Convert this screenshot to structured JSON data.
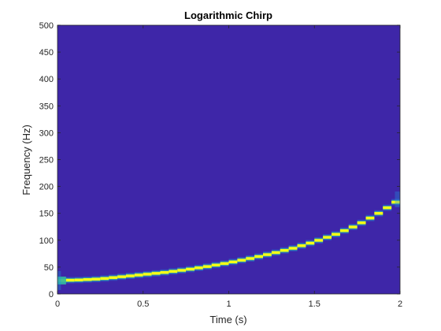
{
  "chart_data": {
    "type": "heatmap",
    "title": "Logarithmic Chirp",
    "xlabel": "Time (s)",
    "ylabel": "Frequency (Hz)",
    "xlim": [
      0,
      2
    ],
    "ylim": [
      0,
      500
    ],
    "x_ticks": [
      0,
      0.5,
      1,
      1.5,
      2
    ],
    "x_tick_labels": [
      "0",
      "0.5",
      "1",
      "1.5",
      "2"
    ],
    "y_ticks": [
      0,
      50,
      100,
      150,
      200,
      250,
      300,
      350,
      400,
      450,
      500
    ],
    "y_tick_labels": [
      "0",
      "50",
      "100",
      "150",
      "200",
      "250",
      "300",
      "350",
      "400",
      "450",
      "500"
    ],
    "grid": false,
    "colormap": "parula",
    "colors": {
      "background": "#3e26a8",
      "peak": "#f9fb15",
      "mid": "#33b7a0",
      "edge": "#1f92dc",
      "axis": "#262626"
    },
    "ridge": {
      "description_of_values": "instantaneous frequency (Hz) of the chirp vs time (s)",
      "t": [
        0.0,
        0.125,
        0.25,
        0.375,
        0.5,
        0.625,
        0.75,
        0.875,
        1.0,
        1.125,
        1.25,
        1.375,
        1.5,
        1.625,
        1.75,
        1.875,
        2.0
      ],
      "f": [
        25,
        26,
        28,
        32,
        36,
        40,
        45,
        51,
        58,
        66,
        75,
        85,
        97,
        111,
        128,
        150,
        176
      ]
    }
  }
}
